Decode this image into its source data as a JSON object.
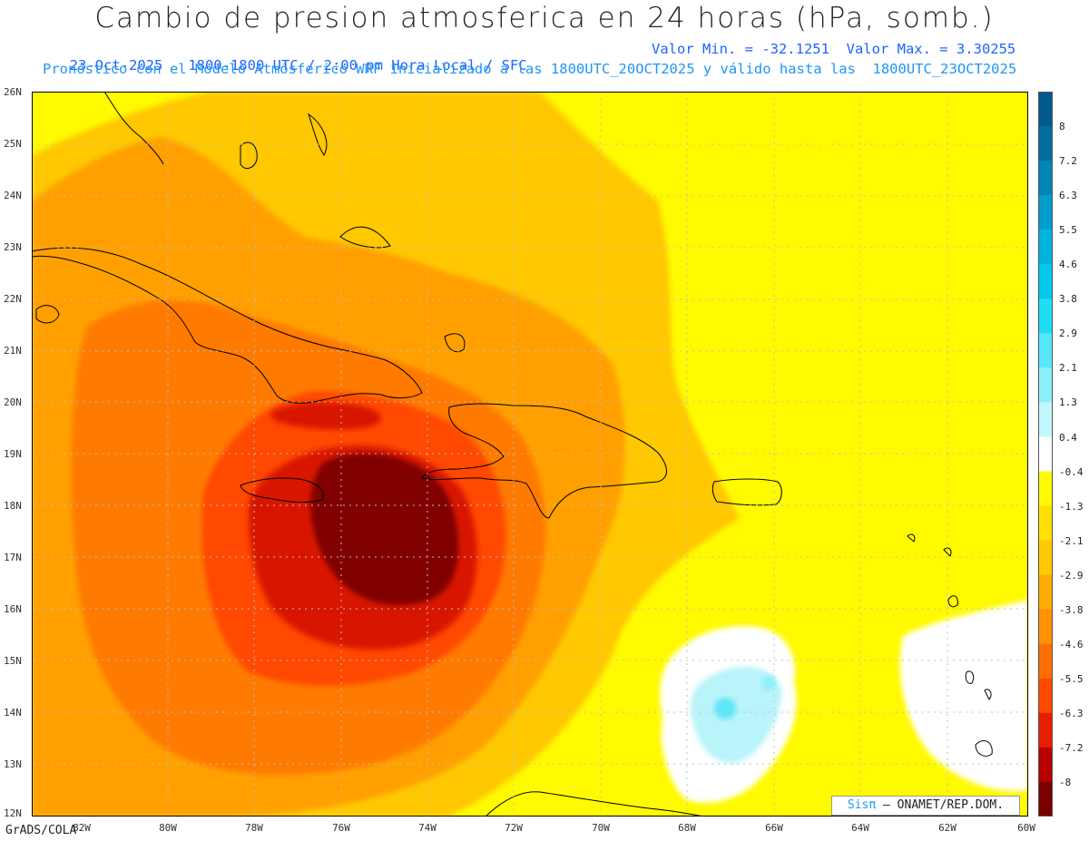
{
  "title": "Cambio de presion atmosferica en 24 horas (hPa, somb.)",
  "subtitle_line1_left": "23-Oct-2025   1800-1800 UTC / 2:00 pm Hora Local / SFC",
  "subtitle_line1_right": "Valor Min. = -32.1251  Valor Max. = 3.30255",
  "subtitle_line2": "Pronóstico con el Modelo Atmósferico WRF inicializado a las 1800UTC_20OCT2025 y válido hasta las  1800UTC_23OCT2025",
  "lat_labels": [
    "26N",
    "25N",
    "24N",
    "23N",
    "22N",
    "21N",
    "20N",
    "19N",
    "18N",
    "17N",
    "16N",
    "15N",
    "14N",
    "13N",
    "12N"
  ],
  "lon_labels": [
    "82W",
    "80W",
    "78W",
    "76W",
    "74W",
    "72W",
    "70W",
    "68W",
    "66W",
    "64W",
    "62W",
    "60W"
  ],
  "colorbar": {
    "labels": [
      "8",
      "7.2",
      "6.3",
      "5.5",
      "4.6",
      "3.8",
      "2.9",
      "2.1",
      "1.3",
      "0.4",
      "-0.4",
      "-1.3",
      "-2.1",
      "-2.9",
      "-3.8",
      "-4.6",
      "-5.5",
      "-6.3",
      "-7.2",
      "-8"
    ],
    "colors": [
      "#005a8c",
      "#006fa0",
      "#0087b8",
      "#009ecf",
      "#00b4e0",
      "#00c8ee",
      "#1fdcf5",
      "#55e8f8",
      "#8cf0fa",
      "#c4f7fb",
      "#ffffff",
      "#fffa00",
      "#ffe000",
      "#ffc800",
      "#ffac00",
      "#ff9000",
      "#ff6e00",
      "#ff4a00",
      "#e81e00",
      "#b80000",
      "#7a0000"
    ]
  },
  "credit": "GrADS/COLA",
  "logo": {
    "brand": "Sisπ",
    "text": " – ONAMET/REP.DOM."
  },
  "colors": {
    "yellow": "#fffa00",
    "orange_light": "#ffc800",
    "orange": "#ffa000",
    "orange_dark": "#ff7a00",
    "red": "#ff4a00",
    "red_dark": "#d81800",
    "maroon": "#800000",
    "cyan_light": "#b8f4fa",
    "cyan": "#5fe6f5"
  }
}
